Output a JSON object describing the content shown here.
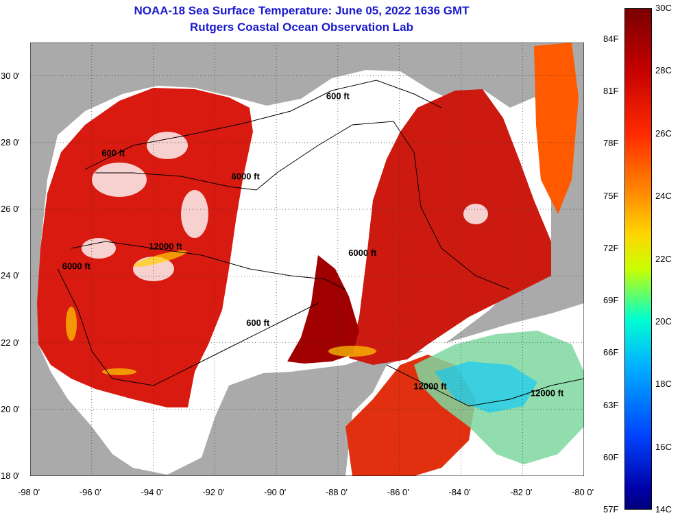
{
  "header": {
    "title": "NOAA-18 Sea Surface Temperature:  June 05, 2022 1636 GMT",
    "subtitle": "Rutgers Coastal Ocean Observation Lab"
  },
  "map": {
    "lon_range": [
      -98,
      -80
    ],
    "lat_range": [
      18,
      31
    ],
    "x_ticks": [
      "-98 0'",
      "-96 0'",
      "-94 0'",
      "-92 0'",
      "-90 0'",
      "-88 0'",
      "-86 0'",
      "-84 0'",
      "-82 0'",
      "-80 0'"
    ],
    "y_ticks": [
      "30 0'",
      "28 0'",
      "26 0'",
      "24 0'",
      "22 0'",
      "20 0'",
      "18 0'"
    ],
    "gridlines": true,
    "contour_labels": [
      {
        "text": "600 ft",
        "lon": -88.0,
        "lat": 29.3
      },
      {
        "text": "600 ft",
        "lon": -95.3,
        "lat": 27.6
      },
      {
        "text": "6000 ft",
        "lon": -91.0,
        "lat": 26.9
      },
      {
        "text": "12000 ft",
        "lon": -93.6,
        "lat": 24.8
      },
      {
        "text": "6000 ft",
        "lon": -96.5,
        "lat": 24.2
      },
      {
        "text": "6000 ft",
        "lon": -87.2,
        "lat": 24.6
      },
      {
        "text": "600 ft",
        "lon": -90.6,
        "lat": 22.5
      },
      {
        "text": "12000 ft",
        "lon": -85.0,
        "lat": 20.6
      },
      {
        "text": "12000 ft",
        "lon": -81.2,
        "lat": 20.4
      }
    ],
    "colors": {
      "land": "#aaaaaa",
      "cloud": "#ffffff",
      "warm": "#d81a10",
      "hot": "#a00000",
      "mid": "#ff5a00",
      "cool": "#00c8ff"
    }
  },
  "colorbar": {
    "celsius": [
      "30C",
      "28C",
      "26C",
      "24C",
      "22C",
      "20C",
      "18C",
      "16C",
      "14C"
    ],
    "fahrenheit": [
      "84F",
      "81F",
      "78F",
      "75F",
      "72F",
      "69F",
      "66F",
      "63F",
      "60F",
      "57F"
    ],
    "range_c": [
      14,
      30
    ]
  }
}
